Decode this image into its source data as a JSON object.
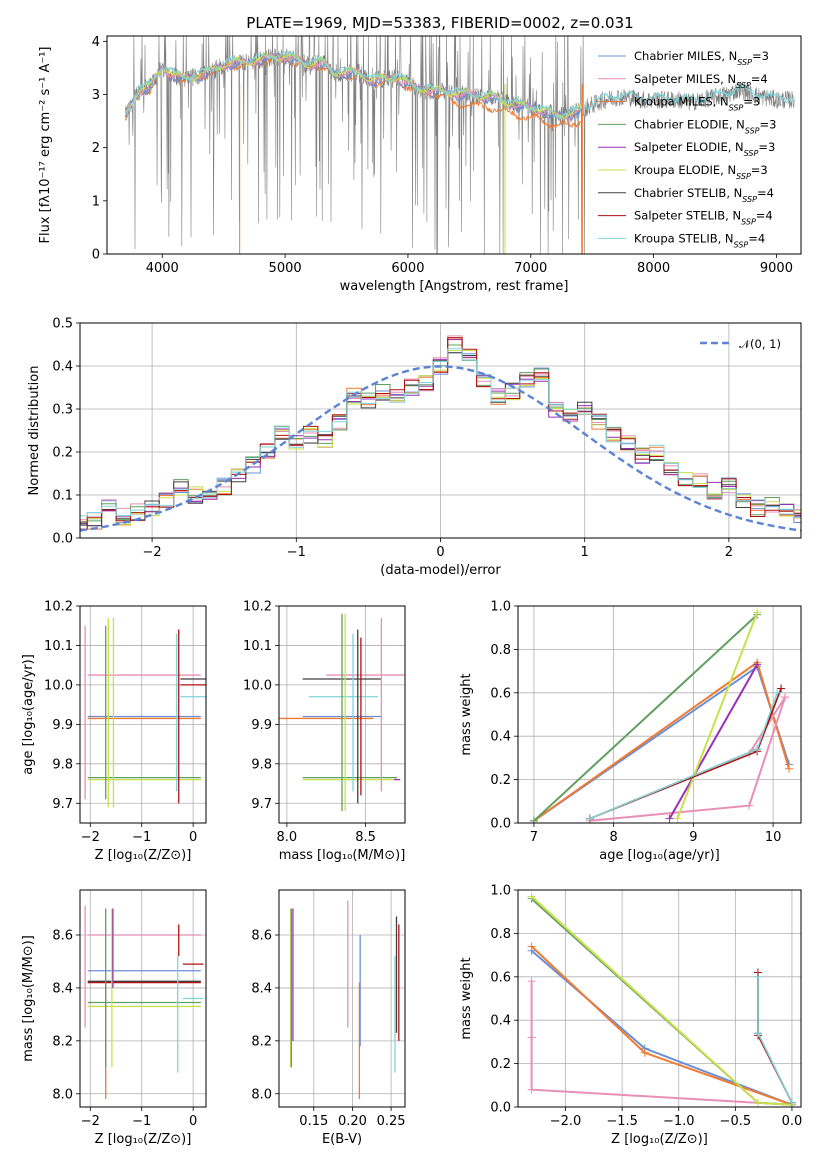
{
  "figure": {
    "title": "PLATE=1969, MJD=53383, FIBERID=0002, z=0.031"
  },
  "colors": {
    "spectrum": "#808080",
    "ChabrierMILES": "#6a8fd8",
    "SalpeterMILES": "#e88fb6",
    "KroupaMILES": "#f07a30",
    "ChabrierELODIE": "#5f9f5f",
    "SalpeterELODIE": "#9a30b8",
    "KroupaELODIE": "#c8e04a",
    "ChabrierSTELIB": "#404040",
    "SalpeterSTELIB": "#b01010",
    "KroupaSTELIB": "#80d4d8",
    "gauss": "#5b84d4"
  },
  "chart_data": [
    {
      "id": "spectrum",
      "type": "line",
      "xlabel": "wavelength [Angstrom, rest frame]",
      "ylabel": "Flux [fλ10⁻¹⁷ erg cm⁻² s⁻¹ A⁻¹]",
      "xlim": [
        3550,
        9200
      ],
      "ylim": [
        0,
        4.1
      ],
      "xticks": [
        4000,
        5000,
        6000,
        7000,
        8000,
        9000
      ],
      "yticks": [
        0,
        1,
        2,
        3,
        4
      ],
      "legend_position": "top-right",
      "legend": [
        {
          "key": "ChabrierMILES",
          "label": "Chabrier MILES, N",
          "sub": "SSP",
          "tail": "=3"
        },
        {
          "key": "SalpeterMILES",
          "label": "Salpeter MILES, N",
          "sub": "SSP",
          "tail": "=4"
        },
        {
          "key": "KroupaMILES",
          "label": "Kroupa MILES, N",
          "sub": "SSP",
          "tail": "=3"
        },
        {
          "key": "ChabrierELODIE",
          "label": "Chabrier ELODIE, N",
          "sub": "SSP",
          "tail": "=3"
        },
        {
          "key": "SalpeterELODIE",
          "label": "Salpeter ELODIE, N",
          "sub": "SSP",
          "tail": "=3"
        },
        {
          "key": "KroupaELODIE",
          "label": "Kroupa ELODIE, N",
          "sub": "SSP",
          "tail": "=3"
        },
        {
          "key": "ChabrierSTELIB",
          "label": "Chabrier STELIB, N",
          "sub": "SSP",
          "tail": "=4"
        },
        {
          "key": "SalpeterSTELIB",
          "label": "Salpeter STELIB, N",
          "sub": "SSP",
          "tail": "=4"
        },
        {
          "key": "KroupaSTELIB",
          "label": "Kroupa STELIB, N",
          "sub": "SSP",
          "tail": "=4"
        }
      ],
      "model_continuum": {
        "x": [
          3700,
          3800,
          3900,
          4000,
          4100,
          4200,
          4300,
          4400,
          4500,
          4600,
          4700,
          4800,
          4900,
          5000,
          5100,
          5200,
          5300,
          5400,
          5500,
          5600,
          5700,
          5800,
          5900,
          6000,
          6100,
          6200,
          6300,
          6400,
          6500,
          6600,
          6700,
          6800,
          6900,
          7000,
          7100,
          7200,
          7300,
          7400,
          7500,
          7600,
          7700,
          7800,
          7900,
          8000,
          8100,
          8200,
          8300,
          8400,
          8500,
          8600,
          8700,
          8800,
          8900,
          9000,
          9100
        ],
        "y": [
          2.6,
          3.05,
          3.15,
          3.5,
          3.35,
          3.3,
          3.35,
          3.45,
          3.55,
          3.6,
          3.6,
          3.65,
          3.7,
          3.7,
          3.65,
          3.55,
          3.6,
          3.4,
          3.4,
          3.4,
          3.25,
          3.3,
          3.3,
          3.2,
          3.1,
          3.05,
          3.05,
          3.0,
          3.0,
          2.95,
          2.95,
          2.85,
          2.8,
          2.75,
          2.7,
          2.6,
          2.6,
          2.7,
          2.8,
          2.9,
          2.95,
          2.95,
          2.9,
          2.9,
          2.9,
          2.9,
          2.85,
          2.9,
          2.95,
          3.0,
          3.1,
          3.0,
          2.95,
          2.9,
          2.9
        ]
      }
    },
    {
      "id": "residuals",
      "type": "histogram",
      "xlabel": "(data-model)/error",
      "ylabel": "Normed distribution",
      "xlim": [
        -2.5,
        2.5
      ],
      "ylim": [
        0,
        0.5
      ],
      "xticks": [
        -2,
        -1,
        0,
        1,
        2
      ],
      "xticklabels": [
        "−2",
        "−1",
        "0",
        "1",
        "2"
      ],
      "yticks": [
        0.0,
        0.1,
        0.2,
        0.3,
        0.4,
        0.5
      ],
      "legend_position": "top-right",
      "legend": [
        {
          "key": "gauss",
          "label": "𝒩(0, 1)"
        }
      ],
      "bin_width": 0.1,
      "reference_hist": [
        0.035,
        0.04,
        0.08,
        0.05,
        0.06,
        0.07,
        0.09,
        0.12,
        0.1,
        0.11,
        0.12,
        0.15,
        0.17,
        0.2,
        0.24,
        0.22,
        0.24,
        0.23,
        0.27,
        0.33,
        0.32,
        0.34,
        0.33,
        0.35,
        0.36,
        0.4,
        0.45,
        0.42,
        0.36,
        0.33,
        0.34,
        0.37,
        0.38,
        0.3,
        0.29,
        0.3,
        0.27,
        0.24,
        0.22,
        0.19,
        0.2,
        0.16,
        0.14,
        0.13,
        0.11,
        0.12,
        0.09,
        0.07,
        0.08,
        0.06,
        0.05
      ]
    },
    {
      "id": "age-vs-Z",
      "type": "errorbar",
      "xlabel": "Z [log₁₀(Z/Z⊙)]",
      "ylabel": "age  [log₁₀(age/yr)]",
      "xlim": [
        -2.2,
        0.25
      ],
      "ylim": [
        9.65,
        10.2
      ],
      "xticks": [
        -2,
        -1,
        0
      ],
      "xticklabels": [
        "−2",
        "−1",
        "0"
      ],
      "yticks": [
        9.7,
        9.8,
        9.9,
        10.0,
        10.1,
        10.2
      ],
      "points": [
        {
          "key": "SalpeterMILES",
          "x": -0.95,
          "xerr": 1.1,
          "y": 10.025,
          "yerr": 0.0
        },
        {
          "key": "SalpeterMILES",
          "x": -2.1,
          "xerr": 0.0,
          "y": 9.93,
          "yerr": 0.22
        },
        {
          "key": "ChabrierMILES",
          "x": -0.95,
          "xerr": 1.1,
          "y": 9.92,
          "yerr": 0.0
        },
        {
          "key": "KroupaMILES",
          "x": -0.95,
          "xerr": 1.1,
          "y": 9.915,
          "yerr": 0.0
        },
        {
          "key": "ChabrierELODIE",
          "x": -0.95,
          "xerr": 1.1,
          "y": 9.765,
          "yerr": 0.0
        },
        {
          "key": "KroupaELODIE",
          "x": -0.95,
          "xerr": 1.1,
          "y": 9.76,
          "yerr": 0.0
        },
        {
          "key": "KroupaELODIE",
          "x": -1.55,
          "xerr": 0.0,
          "y": 9.93,
          "yerr": 0.24
        },
        {
          "key": "KroupaELODIE",
          "x": -1.65,
          "xerr": 0.0,
          "y": 9.93,
          "yerr": 0.24
        },
        {
          "key": "ChabrierELODIE",
          "x": -1.7,
          "xerr": 0.0,
          "y": 9.93,
          "yerr": 0.22
        },
        {
          "key": "SalpeterSTELIB",
          "x": 0.0,
          "xerr": 0.25,
          "y": 10.0,
          "yerr": 0.0
        },
        {
          "key": "ChabrierSTELIB",
          "x": 0.0,
          "xerr": 0.25,
          "y": 10.015,
          "yerr": 0.0
        },
        {
          "key": "KroupaSTELIB",
          "x": 0.0,
          "xerr": 0.25,
          "y": 9.97,
          "yerr": 0.0
        },
        {
          "key": "SalpeterSTELIB",
          "x": -0.28,
          "xerr": 0.0,
          "y": 9.92,
          "yerr": 0.22
        },
        {
          "key": "KroupaSTELIB",
          "x": -0.32,
          "xerr": 0.0,
          "y": 9.93,
          "yerr": 0.2
        }
      ]
    },
    {
      "id": "age-vs-mass",
      "type": "errorbar",
      "xlabel": "mass [log₁₀(M/M⊙)]",
      "ylabel": "",
      "xlim": [
        7.95,
        8.75
      ],
      "ylim": [
        9.65,
        10.2
      ],
      "xticks": [
        8.0,
        8.5
      ],
      "xticklabels": [
        "8.0",
        "8.5"
      ],
      "yticks": [
        9.7,
        9.8,
        9.9,
        10.0,
        10.1,
        10.2
      ],
      "points": [
        {
          "key": "SalpeterMILES",
          "x": 8.5,
          "xerr": 0.25,
          "y": 10.025,
          "yerr": 0.0
        },
        {
          "key": "ChabrierSTELIB",
          "x": 8.35,
          "xerr": 0.25,
          "y": 10.015,
          "yerr": 0.0
        },
        {
          "key": "KroupaSTELIB",
          "x": 8.36,
          "xerr": 0.22,
          "y": 9.97,
          "yerr": 0.0
        },
        {
          "key": "ChabrierMILES",
          "x": 8.35,
          "xerr": 0.25,
          "y": 9.92,
          "yerr": 0.0
        },
        {
          "key": "KroupaMILES",
          "x": 8.25,
          "xerr": 0.3,
          "y": 9.915,
          "yerr": 0.0
        },
        {
          "key": "ChabrierELODIE",
          "x": 8.4,
          "xerr": 0.3,
          "y": 9.765,
          "yerr": 0.0
        },
        {
          "key": "KroupaELODIE",
          "x": 8.4,
          "xerr": 0.3,
          "y": 9.76,
          "yerr": 0.0
        },
        {
          "key": "ChabrierELODIE",
          "x": 8.35,
          "xerr": 0.0,
          "y": 9.93,
          "yerr": 0.25
        },
        {
          "key": "KroupaELODIE",
          "x": 8.37,
          "xerr": 0.0,
          "y": 9.93,
          "yerr": 0.25
        },
        {
          "key": "SalpeterMILES",
          "x": 8.6,
          "xerr": 0.0,
          "y": 9.95,
          "yerr": 0.22
        },
        {
          "key": "ChabrierSTELIB",
          "x": 8.45,
          "xerr": 0.0,
          "y": 9.92,
          "yerr": 0.22
        },
        {
          "key": "SalpeterSTELIB",
          "x": 8.47,
          "xerr": 0.0,
          "y": 9.92,
          "yerr": 0.2
        },
        {
          "key": "KroupaSTELIB",
          "x": 8.42,
          "xerr": 0.0,
          "y": 9.93,
          "yerr": 0.2
        },
        {
          "key": "SalpeterELODIE",
          "x": 8.7,
          "xerr": 0.02,
          "y": 9.76,
          "yerr": 0.0
        }
      ]
    },
    {
      "id": "weight-vs-age",
      "type": "line",
      "xlabel": "age  [log₁₀(age/yr)]",
      "ylabel": "mass weight",
      "xlim": [
        6.8,
        10.35
      ],
      "ylim": [
        0,
        1.0
      ],
      "xticks": [
        7,
        8,
        9,
        10
      ],
      "yticks": [
        0.0,
        0.2,
        0.4,
        0.6,
        0.8,
        1.0
      ],
      "series": [
        {
          "key": "ChabrierMILES",
          "x": [
            7.0,
            9.8,
            10.2
          ],
          "y": [
            0.01,
            0.72,
            0.27
          ]
        },
        {
          "key": "KroupaMILES",
          "x": [
            7.0,
            9.8,
            10.2
          ],
          "y": [
            0.01,
            0.74,
            0.25
          ]
        },
        {
          "key": "SalpeterMILES",
          "x": [
            7.7,
            9.7,
            10.15
          ],
          "y": [
            0.01,
            0.08,
            0.58
          ]
        },
        {
          "key": "SalpeterMILES",
          "x": [
            9.7,
            10.15
          ],
          "y": [
            0.32,
            0.58
          ]
        },
        {
          "key": "ChabrierELODIE",
          "x": [
            7.0,
            9.8
          ],
          "y": [
            0.01,
            0.96
          ]
        },
        {
          "key": "SalpeterELODIE",
          "x": [
            8.7,
            9.8
          ],
          "y": [
            0.02,
            0.73
          ]
        },
        {
          "key": "KroupaELODIE",
          "x": [
            8.8,
            9.8
          ],
          "y": [
            0.02,
            0.97
          ]
        },
        {
          "key": "ChabrierSTELIB",
          "x": [
            7.7,
            9.8,
            10.1
          ],
          "y": [
            0.02,
            0.34,
            0.62
          ]
        },
        {
          "key": "SalpeterSTELIB",
          "x": [
            7.7,
            9.8,
            10.1
          ],
          "y": [
            0.02,
            0.33,
            0.62
          ]
        },
        {
          "key": "KroupaSTELIB",
          "x": [
            7.7,
            9.8,
            10.05
          ],
          "y": [
            0.02,
            0.34,
            0.6
          ]
        }
      ]
    },
    {
      "id": "mass-vs-Z",
      "type": "errorbar",
      "xlabel": "Z [log₁₀(Z/Z⊙)]",
      "ylabel": "mass [log₁₀(M/M⊙)]",
      "xlim": [
        -2.2,
        0.25
      ],
      "ylim": [
        7.95,
        8.77
      ],
      "xticks": [
        -2,
        -1,
        0
      ],
      "xticklabels": [
        "−2",
        "−1",
        "0"
      ],
      "yticks": [
        8.0,
        8.2,
        8.4,
        8.6
      ],
      "points": [
        {
          "key": "SalpeterMILES",
          "x": -0.95,
          "xerr": 1.1,
          "y": 8.6,
          "yerr": 0.0
        },
        {
          "key": "ChabrierMILES",
          "x": -0.95,
          "xerr": 1.1,
          "y": 8.465,
          "yerr": 0.0
        },
        {
          "key": "ChabrierSTELIB",
          "x": -0.95,
          "xerr": 1.1,
          "y": 8.425,
          "yerr": 0.0
        },
        {
          "key": "SalpeterSTELIB",
          "x": -0.95,
          "xerr": 1.1,
          "y": 8.42,
          "yerr": 0.0
        },
        {
          "key": "ChabrierELODIE",
          "x": -0.95,
          "xerr": 1.1,
          "y": 8.345,
          "yerr": 0.0
        },
        {
          "key": "KroupaELODIE",
          "x": -0.95,
          "xerr": 1.1,
          "y": 8.33,
          "yerr": 0.0
        },
        {
          "key": "KroupaSTELIB",
          "x": 0.0,
          "xerr": 0.2,
          "y": 8.36,
          "yerr": 0.0
        },
        {
          "key": "SalpeterSTELIB",
          "x": 0.0,
          "xerr": 0.2,
          "y": 8.49,
          "yerr": 0.0
        },
        {
          "key": "SalpeterMILES",
          "x": -2.1,
          "xerr": 0.0,
          "y": 8.48,
          "yerr": 0.23
        },
        {
          "key": "KroupaMILES",
          "x": -1.7,
          "xerr": 0.0,
          "y": 8.2,
          "yerr": 0.22
        },
        {
          "key": "ChabrierELODIE",
          "x": -1.7,
          "xerr": 0.0,
          "y": 8.4,
          "yerr": 0.3
        },
        {
          "key": "KroupaELODIE",
          "x": -1.58,
          "xerr": 0.0,
          "y": 8.4,
          "yerr": 0.3
        },
        {
          "key": "SalpeterELODIE",
          "x": -1.56,
          "xerr": 0.0,
          "y": 8.55,
          "yerr": 0.15
        },
        {
          "key": "SalpeterSTELIB",
          "x": -0.28,
          "xerr": 0.0,
          "y": 8.58,
          "yerr": 0.06
        },
        {
          "key": "KroupaSTELIB",
          "x": -0.3,
          "xerr": 0.0,
          "y": 8.3,
          "yerr": 0.22
        }
      ]
    },
    {
      "id": "mass-vs-ebv",
      "type": "errorbar",
      "xlabel": "E(B-V)",
      "ylabel": "",
      "xlim": [
        0.105,
        0.268
      ],
      "ylim": [
        7.95,
        8.77
      ],
      "xticks": [
        0.15,
        0.2,
        0.25
      ],
      "xticklabels": [
        "0.15",
        "0.20",
        "0.25"
      ],
      "yticks": [
        8.0,
        8.2,
        8.4,
        8.6
      ],
      "points": [
        {
          "key": "KroupaELODIE",
          "x": 0.12,
          "xerr": 0.0,
          "y": 8.4,
          "yerr": 0.3
        },
        {
          "key": "ChabrierELODIE",
          "x": 0.121,
          "xerr": 0.0,
          "y": 8.4,
          "yerr": 0.3
        },
        {
          "key": "SalpeterELODIE",
          "x": 0.123,
          "xerr": 0.0,
          "y": 8.45,
          "yerr": 0.25
        },
        {
          "key": "SalpeterMILES",
          "x": 0.194,
          "xerr": 0.0,
          "y": 8.49,
          "yerr": 0.24
        },
        {
          "key": "KroupaMILES",
          "x": 0.209,
          "xerr": 0.0,
          "y": 8.2,
          "yerr": 0.22
        },
        {
          "key": "ChabrierMILES",
          "x": 0.21,
          "xerr": 0.0,
          "y": 8.39,
          "yerr": 0.21
        },
        {
          "key": "KroupaSTELIB",
          "x": 0.255,
          "xerr": 0.0,
          "y": 8.3,
          "yerr": 0.22
        },
        {
          "key": "ChabrierSTELIB",
          "x": 0.257,
          "xerr": 0.0,
          "y": 8.45,
          "yerr": 0.22
        },
        {
          "key": "SalpeterSTELIB",
          "x": 0.26,
          "xerr": 0.0,
          "y": 8.42,
          "yerr": 0.22
        }
      ]
    },
    {
      "id": "weight-vs-Z",
      "type": "line",
      "xlabel": "Z [log₁₀(Z/Z⊙)]",
      "ylabel": "mass weight",
      "xlim": [
        -2.42,
        0.08
      ],
      "ylim": [
        0,
        1.0
      ],
      "xticks": [
        -2.0,
        -1.5,
        -1.0,
        -0.5,
        0.0
      ],
      "xticklabels": [
        "−2.0",
        "−1.5",
        "−1.0",
        "−0.5",
        "0.0"
      ],
      "yticks": [
        0.0,
        0.2,
        0.4,
        0.6,
        0.8,
        1.0
      ],
      "series": [
        {
          "key": "ChabrierMILES",
          "x": [
            -2.3,
            -1.3,
            0.0
          ],
          "y": [
            0.72,
            0.27,
            0.01
          ]
        },
        {
          "key": "KroupaMILES",
          "x": [
            -2.3,
            -1.3,
            0.0
          ],
          "y": [
            0.74,
            0.25,
            0.01
          ]
        },
        {
          "key": "SalpeterMILES",
          "x": [
            -2.3,
            -2.3,
            -2.3,
            -2.3,
            0.0
          ],
          "y": [
            0.58,
            0.32,
            0.32,
            0.08,
            0.01
          ]
        },
        {
          "key": "ChabrierELODIE",
          "x": [
            -2.3,
            -0.3,
            0.0
          ],
          "y": [
            0.96,
            0.02,
            0.01
          ]
        },
        {
          "key": "KroupaELODIE",
          "x": [
            -2.3,
            -0.3,
            0.0
          ],
          "y": [
            0.97,
            0.02,
            0.01
          ]
        },
        {
          "key": "ChabrierSTELIB",
          "x": [
            -0.3,
            -0.3,
            0.0
          ],
          "y": [
            0.62,
            0.34,
            0.02
          ]
        },
        {
          "key": "SalpeterSTELIB",
          "x": [
            -0.3,
            -0.3,
            0.0
          ],
          "y": [
            0.62,
            0.33,
            0.02
          ]
        },
        {
          "key": "KroupaSTELIB",
          "x": [
            -0.3,
            -0.3,
            0.0
          ],
          "y": [
            0.6,
            0.34,
            0.02
          ]
        }
      ]
    }
  ]
}
